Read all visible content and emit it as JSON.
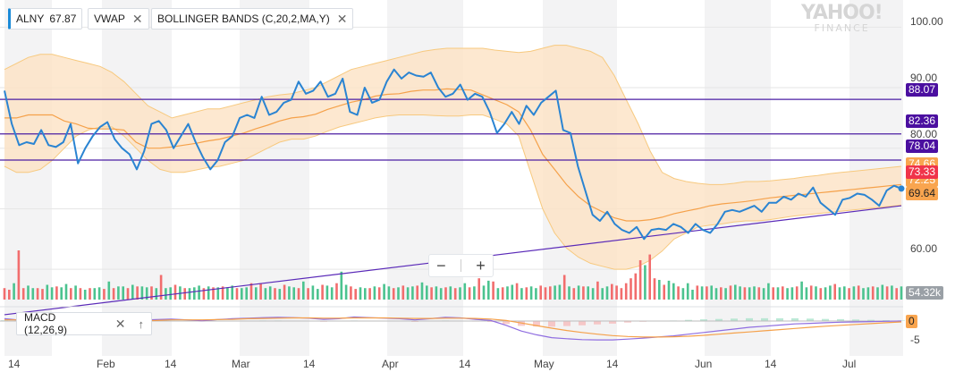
{
  "legend": {
    "symbol": "ALNY",
    "symbol_value": "67.87",
    "vwap": "VWAP",
    "bollinger": "BOLLINGER BANDS (C,20,2,MA,Y)",
    "close": "✕"
  },
  "macd_label": "MACD (12,26,9)",
  "macd_close": "✕",
  "macd_up": "↑",
  "zoom": {
    "minus": "−",
    "plus": "+"
  },
  "logo": {
    "line1": "YAHOO!",
    "line2": "FINANCE"
  },
  "tags": {
    "level1": "88.07",
    "level2": "82.36",
    "level3": "78.04",
    "band_upper": "74.66",
    "price": "73.33",
    "vwap": "72.25",
    "band_lower": "69.64",
    "volume": "54.32k",
    "macd": "0"
  },
  "colors": {
    "price": "#2a84d2",
    "band_fill": "#fde2c4",
    "band_edge": "#f7c97e",
    "sma": "#f5a14a",
    "hline": "#4b1ea3",
    "trend": "#5a2ab8",
    "vol_up": "#4bc38f",
    "vol_down": "#f26d6d",
    "macd": "#8f6de0",
    "signal": "#f5a14a",
    "tag_purple": "#4b0fa0",
    "tag_orange": "#f9a54f",
    "tag_red": "#f0344a",
    "tag_gray": "#9aa0a6"
  },
  "chart_data": {
    "type": "line",
    "symbol": "ALNY",
    "x_tick_labels": [
      "14",
      "Feb",
      "14",
      "Mar",
      "14",
      "Apr",
      "14",
      "May",
      "14",
      "Jun",
      "14",
      "Jul"
    ],
    "y_tick_labels": [
      "100.00",
      "90.00",
      "80.00",
      "60.00"
    ],
    "ylim": [
      55,
      103
    ],
    "horizontal_levels": [
      88.07,
      82.36,
      78.04
    ],
    "price": [
      89.5,
      84.0,
      80.5,
      81.0,
      80.7,
      83.0,
      80.5,
      80.2,
      81.0,
      84.0,
      77.5,
      80.0,
      82.0,
      83.5,
      84.3,
      81.5,
      80.0,
      79.0,
      76.5,
      79.5,
      84.0,
      84.5,
      83.0,
      80.0,
      82.0,
      84.0,
      81.0,
      78.5,
      76.5,
      78.0,
      81.0,
      82.0,
      85.0,
      85.5,
      85.0,
      88.5,
      85.5,
      86.0,
      87.5,
      88.0,
      91.0,
      89.0,
      89.5,
      91.0,
      88.5,
      89.0,
      91.5,
      86.0,
      85.5,
      90.0,
      87.5,
      88.0,
      91.0,
      93.0,
      91.5,
      92.5,
      92.0,
      91.8,
      92.5,
      90.0,
      88.5,
      89.0,
      90.5,
      88.0,
      89.0,
      88.5,
      86.0,
      82.5,
      84.0,
      86.0,
      84.0,
      87.0,
      85.5,
      87.5,
      88.5,
      89.5,
      83.0,
      82.5,
      77.0,
      73.0,
      69.0,
      68.0,
      69.5,
      67.5,
      66.5,
      66.0,
      67.0,
      65.0,
      66.5,
      66.7,
      66.5,
      67.5,
      67.0,
      66.0,
      67.5,
      66.5,
      66.0,
      67.5,
      69.5,
      69.8,
      69.5,
      70.0,
      70.5,
      69.5,
      71.0,
      71.0,
      72.0,
      71.5,
      72.5,
      72.0,
      73.5,
      71.0,
      70.0,
      69.0,
      71.5,
      71.8,
      72.5,
      72.3,
      71.5,
      70.5,
      73.0,
      73.8,
      73.33
    ],
    "bollinger_upper": [
      93,
      94,
      95,
      95.5,
      95.5,
      95,
      94.5,
      94,
      93.5,
      92.5,
      91,
      89,
      87,
      86,
      85,
      85.5,
      86,
      86.5,
      86.5,
      87,
      87.5,
      88,
      88.5,
      88.8,
      89,
      89.5,
      90,
      91,
      92,
      93,
      93.5,
      94,
      94.5,
      95,
      95.5,
      96,
      96.3,
      96.5,
      96.5,
      96.5,
      96.5,
      96.2,
      96,
      95.8,
      96,
      96.5,
      97,
      97,
      96.5,
      96,
      95,
      92,
      88,
      84,
      79.5,
      76,
      75,
      74.5,
      74.2,
      74,
      74,
      74.2,
      74.5,
      74.5,
      74.6,
      74.8,
      75,
      75.3,
      75.5,
      75.8,
      76,
      76.2,
      76.4,
      76.6,
      76.8,
      77
    ],
    "bollinger_lower": [
      77,
      76,
      76,
      76.5,
      78,
      80,
      82,
      83,
      83.5,
      83.5,
      82,
      80,
      78,
      76.5,
      76,
      76,
      76.4,
      76.8,
      77,
      77.5,
      78,
      79,
      80,
      81,
      81.5,
      81.5,
      82,
      82.8,
      83.5,
      84,
      84.5,
      85,
      85.3,
      85.5,
      85.5,
      85.5,
      85.4,
      85.3,
      85.3,
      85.5,
      85.5,
      84.8,
      84,
      82,
      76,
      70,
      66,
      63.5,
      62,
      61,
      60.5,
      60,
      60,
      60.5,
      61.5,
      63,
      65,
      66,
      67,
      67.3,
      67.5,
      67.8,
      68,
      68,
      68.2,
      68.5,
      68.8,
      69,
      69.2,
      69.4,
      69.6,
      69.8,
      70,
      70.2,
      70.4,
      70.6
    ],
    "sma20": [
      85,
      85,
      85.5,
      85.5,
      85.5,
      84.5,
      84,
      83.3,
      83.2,
      83.2,
      83,
      81,
      80,
      80,
      80.2,
      80.5,
      80.8,
      81.2,
      81.5,
      82,
      82.5,
      83.2,
      83.8,
      84.5,
      85,
      85.2,
      85.6,
      86.4,
      87,
      87.6,
      88,
      88.6,
      88.9,
      89,
      89.4,
      89.6,
      89.6,
      89.8,
      89.7,
      89.6,
      88.8,
      88,
      87.2,
      86,
      83,
      79,
      76.5,
      74,
      72,
      70.5,
      69.5,
      68.5,
      68,
      68,
      68.2,
      68.6,
      69.2,
      69.6,
      70,
      70.5,
      70.8,
      71,
      71.2,
      71.5,
      71.8,
      72,
      72.2,
      72.4,
      72.6,
      72.8,
      73,
      73.2,
      73.4,
      73.6,
      73.8,
      74
    ],
    "trendline": [
      [
        0,
        52.5
      ],
      [
        1,
        70.5
      ]
    ],
    "volume": [
      14,
      12,
      20,
      60,
      14,
      17,
      14,
      14,
      13,
      18,
      15,
      16,
      15,
      19,
      14,
      17,
      14,
      12,
      14,
      14,
      15,
      13,
      22,
      14,
      16,
      16,
      14,
      18,
      16,
      16,
      15,
      16,
      14,
      30,
      14,
      15,
      18,
      16,
      14,
      14,
      15,
      17,
      14,
      16,
      15,
      15,
      16,
      15,
      17,
      14,
      14,
      15,
      20,
      15,
      20,
      14,
      16,
      14,
      13,
      18,
      16,
      15,
      14,
      22,
      14,
      17,
      13,
      18,
      17,
      15,
      20,
      34,
      18,
      16,
      13,
      15,
      14,
      14,
      16,
      15,
      19,
      16,
      14,
      15,
      17,
      15,
      16,
      17,
      21,
      17,
      15,
      16,
      14,
      15,
      16,
      14,
      15,
      20,
      15,
      16,
      26,
      17,
      23,
      22,
      14,
      15,
      16,
      18,
      20,
      14,
      15,
      16,
      14,
      17,
      15,
      16,
      17,
      18,
      30,
      16,
      14,
      17,
      16,
      16,
      14,
      22,
      14,
      16,
      19,
      17,
      14,
      20,
      26,
      32,
      48,
      42,
      55,
      26,
      24,
      18,
      23,
      20,
      16,
      14,
      20,
      12,
      17,
      16,
      16,
      17,
      14,
      15,
      14,
      17,
      18,
      16,
      15,
      15,
      16,
      15,
      14,
      20,
      15,
      15,
      16,
      14,
      15,
      16,
      22,
      15,
      17,
      16,
      14,
      15,
      17,
      19,
      15,
      16,
      14,
      16,
      17,
      14,
      15,
      16,
      15,
      18,
      16,
      17,
      14,
      16
    ],
    "volume_up": [
      0,
      0,
      1,
      0,
      0,
      1,
      1,
      0,
      0,
      1,
      1,
      0,
      1,
      1,
      0,
      1,
      0,
      1,
      0,
      1,
      1,
      0,
      1,
      0,
      1,
      1,
      0,
      1,
      0,
      1,
      1,
      0,
      1,
      0,
      1,
      1,
      0,
      1,
      0,
      1,
      1,
      1,
      0,
      1,
      0,
      1,
      0,
      1,
      1,
      0,
      1,
      1,
      0,
      1,
      0,
      1,
      1,
      0,
      1,
      0,
      1,
      1,
      0,
      1,
      0,
      1,
      1,
      0,
      1,
      1,
      0,
      1,
      1,
      0,
      0,
      1,
      1,
      0,
      1,
      0,
      1,
      1,
      0,
      1,
      0,
      1,
      1,
      0,
      1,
      1,
      0,
      1,
      1,
      0,
      1,
      0,
      1,
      1,
      0,
      1,
      0,
      1,
      1,
      0,
      1,
      0,
      1,
      1,
      0,
      1,
      0,
      1,
      1,
      0,
      0,
      0,
      1,
      1,
      0,
      1,
      0,
      1,
      0,
      1,
      1,
      0,
      1,
      1,
      0,
      0,
      0,
      0,
      0,
      0,
      0,
      1,
      0,
      0,
      1,
      0,
      1,
      1,
      0,
      1,
      1,
      1,
      0,
      1,
      0,
      1,
      1,
      0,
      1,
      0,
      1,
      1,
      0,
      1,
      1,
      0,
      1,
      1,
      0,
      1,
      0,
      1,
      1,
      0,
      1,
      1,
      0,
      1,
      0,
      1,
      1,
      0,
      1,
      1,
      0,
      1,
      0,
      1,
      1,
      0,
      1,
      1,
      0,
      1,
      0,
      1
    ],
    "macd": [
      0.8,
      0.3,
      0,
      -0.2,
      -0.1,
      0.2,
      0,
      -0.3,
      0,
      0.3,
      0.5,
      0.7,
      0.4,
      0.1,
      0.5,
      0.8,
      1,
      1.2,
      1.3,
      1.2,
      1,
      0.6,
      0.8,
      1.4,
      1.2,
      1,
      0.8,
      0.4,
      0.8,
      1.3,
      1.1,
      0.6,
      0.2,
      -1.5,
      -3.5,
      -4.8,
      -5.8,
      -6.2,
      -6.5,
      -6.6,
      -6.6,
      -6.3,
      -6,
      -5.6,
      -5.2,
      -4.6,
      -4,
      -3.4,
      -2.8,
      -2.2,
      -1.8,
      -1.4,
      -1,
      -0.8,
      -0.6,
      -0.4,
      -0.3,
      -0.2,
      -0.1,
      0
    ],
    "macd_signal": [
      0.4,
      0.4,
      0.3,
      0.2,
      0.1,
      0,
      0,
      0,
      0,
      0.1,
      0.2,
      0.4,
      0.4,
      0.4,
      0.5,
      0.6,
      0.8,
      0.9,
      1,
      1.1,
      1.1,
      1,
      1,
      1.1,
      1.1,
      1.1,
      1,
      0.9,
      0.9,
      1,
      1,
      0.9,
      0.7,
      0.2,
      -0.7,
      -1.6,
      -2.5,
      -3.3,
      -4,
      -4.6,
      -5.1,
      -5.4,
      -5.6,
      -5.6,
      -5.5,
      -5.3,
      -5,
      -4.6,
      -4.2,
      -3.8,
      -3.4,
      -3,
      -2.6,
      -2.2,
      -1.8,
      -1.5,
      -1.2,
      -0.9,
      -0.6,
      -0.3
    ],
    "macd_y_tick_labels": [
      "0",
      "-5"
    ]
  }
}
